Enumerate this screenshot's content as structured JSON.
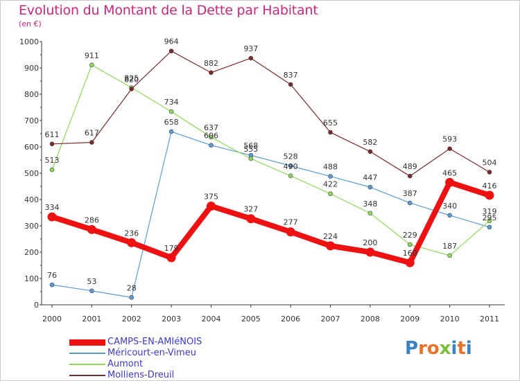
{
  "title": "Evolution du Montant de la Dette par Habitant",
  "subtitle": "(en €)",
  "logo": {
    "text": "Proxiti",
    "letters": [
      {
        "ch": "P",
        "color": "#3b82c4"
      },
      {
        "ch": "r",
        "color": "#e8732a"
      },
      {
        "ch": "o",
        "color": "#e8732a"
      },
      {
        "ch": "x",
        "color": "#7bbf3a"
      },
      {
        "ch": "i",
        "color": "#3b82c4"
      },
      {
        "ch": "t",
        "color": "#e8732a"
      },
      {
        "ch": "i",
        "color": "#3b82c4"
      }
    ]
  },
  "chart_data": {
    "type": "line",
    "categories": [
      "2000",
      "2001",
      "2002",
      "2003",
      "2004",
      "2005",
      "2006",
      "2007",
      "2008",
      "2009",
      "2010",
      "2011"
    ],
    "ylim": [
      0,
      1000
    ],
    "yticks": [
      0,
      100,
      200,
      300,
      400,
      500,
      600,
      700,
      800,
      900,
      1000
    ],
    "grid": false,
    "legend_position": "bottom-left",
    "series": [
      {
        "name": "CAMPS-EN-AMIéNOIS",
        "color": "#ee1111",
        "width": 8,
        "values": [
          334,
          286,
          236,
          179,
          375,
          327,
          277,
          224,
          200,
          160,
          465,
          416
        ],
        "labels": [
          "334",
          "286",
          "236",
          "179",
          "375",
          "327",
          "277",
          "224",
          "200",
          "160",
          "465",
          "416"
        ]
      },
      {
        "name": "Méricourt-en-Vimeu",
        "color": "#5b9bd5",
        "width": 1.2,
        "values": [
          76,
          53,
          28,
          658,
          606,
          568,
          528,
          488,
          447,
          387,
          340,
          295
        ],
        "labels": [
          "76",
          "53",
          "28",
          "658",
          "606",
          "568",
          "528",
          "488",
          "447",
          "387",
          "340",
          "295"
        ]
      },
      {
        "name": "Aumont",
        "color": "#8ed95a",
        "width": 1.2,
        "values": [
          513,
          911,
          825,
          734,
          637,
          555,
          490,
          422,
          348,
          229,
          187,
          319
        ],
        "labels": [
          "513",
          "911",
          "825",
          "734",
          "637",
          "555",
          "490",
          "422",
          "348",
          "229",
          "187",
          "319"
        ]
      },
      {
        "name": "Molliens-Dreuil",
        "color": "#7a2a2a",
        "width": 1.2,
        "values": [
          611,
          617,
          820,
          964,
          882,
          937,
          837,
          655,
          582,
          489,
          593,
          504
        ],
        "labels": [
          "611",
          "617",
          "820",
          "964",
          "882",
          "937",
          "837",
          "655",
          "582",
          "489",
          "593",
          "504"
        ]
      }
    ]
  }
}
